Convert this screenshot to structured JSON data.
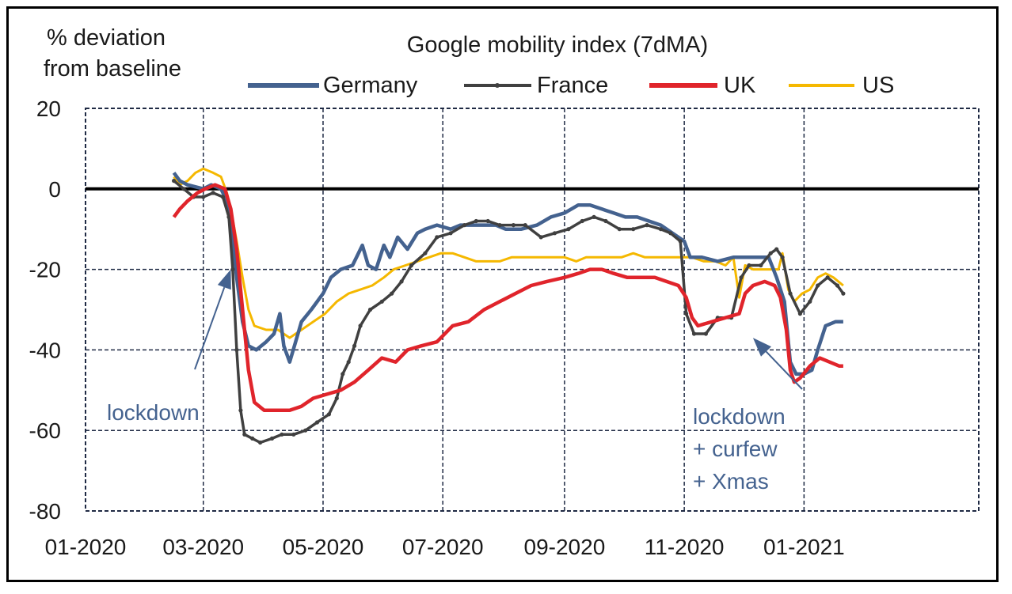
{
  "chart_data": {
    "type": "line",
    "title": "Google mobility index (7dMA)",
    "ylabel": "% deviation from baseline",
    "ylabel_lines": [
      "% deviation",
      "from baseline"
    ],
    "ylim": [
      -80,
      20
    ],
    "yticks": [
      20,
      0,
      -20,
      -40,
      -60,
      -80
    ],
    "xticks": [
      "01-2020",
      "03-2020",
      "05-2020",
      "07-2020",
      "09-2020",
      "11-2020",
      "01-2021"
    ],
    "xlim": [
      "2020-01-01",
      "2021-03-31"
    ],
    "grid": true,
    "legend_position": "top",
    "series": [
      {
        "name": "Germany",
        "color": "#44628f",
        "points": [
          [
            "2020-02-15",
            4
          ],
          [
            "2020-02-18",
            2
          ],
          [
            "2020-02-22",
            1
          ],
          [
            "2020-03-01",
            0
          ],
          [
            "2020-03-05",
            1
          ],
          [
            "2020-03-10",
            0
          ],
          [
            "2020-03-13",
            -3
          ],
          [
            "2020-03-15",
            -8
          ],
          [
            "2020-03-18",
            -22
          ],
          [
            "2020-03-21",
            -33
          ],
          [
            "2020-03-24",
            -39
          ],
          [
            "2020-03-28",
            -40
          ],
          [
            "2020-04-02",
            -38
          ],
          [
            "2020-04-06",
            -36
          ],
          [
            "2020-04-09",
            -31
          ],
          [
            "2020-04-11",
            -39
          ],
          [
            "2020-04-14",
            -43
          ],
          [
            "2020-04-17",
            -38
          ],
          [
            "2020-04-20",
            -33
          ],
          [
            "2020-04-25",
            -30
          ],
          [
            "2020-05-01",
            -26
          ],
          [
            "2020-05-05",
            -22
          ],
          [
            "2020-05-10",
            -20
          ],
          [
            "2020-05-16",
            -19
          ],
          [
            "2020-05-21",
            -14
          ],
          [
            "2020-05-24",
            -19
          ],
          [
            "2020-05-28",
            -20
          ],
          [
            "2020-06-01",
            -14
          ],
          [
            "2020-06-04",
            -17
          ],
          [
            "2020-06-08",
            -12
          ],
          [
            "2020-06-13",
            -15
          ],
          [
            "2020-06-18",
            -11
          ],
          [
            "2020-06-22",
            -10
          ],
          [
            "2020-06-28",
            -9
          ],
          [
            "2020-07-05",
            -10
          ],
          [
            "2020-07-10",
            -9
          ],
          [
            "2020-07-15",
            -9
          ],
          [
            "2020-07-20",
            -9
          ],
          [
            "2020-07-28",
            -9
          ],
          [
            "2020-08-02",
            -10
          ],
          [
            "2020-08-10",
            -10
          ],
          [
            "2020-08-18",
            -9
          ],
          [
            "2020-08-25",
            -7
          ],
          [
            "2020-09-01",
            -6
          ],
          [
            "2020-09-08",
            -4
          ],
          [
            "2020-09-14",
            -4
          ],
          [
            "2020-09-20",
            -5
          ],
          [
            "2020-09-26",
            -6
          ],
          [
            "2020-10-02",
            -7
          ],
          [
            "2020-10-08",
            -7
          ],
          [
            "2020-10-14",
            -8
          ],
          [
            "2020-10-20",
            -9
          ],
          [
            "2020-10-26",
            -11
          ],
          [
            "2020-11-01",
            -13
          ],
          [
            "2020-11-04",
            -17
          ],
          [
            "2020-11-10",
            -17
          ],
          [
            "2020-11-18",
            -18
          ],
          [
            "2020-11-26",
            -17
          ],
          [
            "2020-12-02",
            -17
          ],
          [
            "2020-12-09",
            -17
          ],
          [
            "2020-12-14",
            -17
          ],
          [
            "2020-12-18",
            -22
          ],
          [
            "2020-12-22",
            -28
          ],
          [
            "2020-12-25",
            -43
          ],
          [
            "2020-12-28",
            -46
          ],
          [
            "2021-01-01",
            -46
          ],
          [
            "2021-01-05",
            -45
          ],
          [
            "2021-01-08",
            -40
          ],
          [
            "2021-01-12",
            -34
          ],
          [
            "2021-01-17",
            -33
          ],
          [
            "2021-01-21",
            -33
          ]
        ]
      },
      {
        "name": "France",
        "color": "#404040",
        "marker": true,
        "points": [
          [
            "2020-02-15",
            2
          ],
          [
            "2020-02-20",
            0
          ],
          [
            "2020-02-25",
            -2
          ],
          [
            "2020-03-01",
            -2
          ],
          [
            "2020-03-06",
            -1
          ],
          [
            "2020-03-11",
            -2
          ],
          [
            "2020-03-14",
            -7
          ],
          [
            "2020-03-16",
            -20
          ],
          [
            "2020-03-18",
            -40
          ],
          [
            "2020-03-20",
            -55
          ],
          [
            "2020-03-22",
            -61
          ],
          [
            "2020-03-26",
            -62
          ],
          [
            "2020-03-30",
            -63
          ],
          [
            "2020-04-05",
            -62
          ],
          [
            "2020-04-10",
            -61
          ],
          [
            "2020-04-16",
            -61
          ],
          [
            "2020-04-22",
            -60
          ],
          [
            "2020-04-28",
            -58
          ],
          [
            "2020-05-04",
            -56
          ],
          [
            "2020-05-08",
            -52
          ],
          [
            "2020-05-11",
            -46
          ],
          [
            "2020-05-14",
            -43
          ],
          [
            "2020-05-17",
            -39
          ],
          [
            "2020-05-20",
            -34
          ],
          [
            "2020-05-25",
            -30
          ],
          [
            "2020-05-31",
            -28
          ],
          [
            "2020-06-05",
            -26
          ],
          [
            "2020-06-10",
            -23
          ],
          [
            "2020-06-15",
            -19
          ],
          [
            "2020-06-22",
            -16
          ],
          [
            "2020-06-28",
            -12
          ],
          [
            "2020-07-05",
            -11
          ],
          [
            "2020-07-12",
            -9
          ],
          [
            "2020-07-18",
            -8
          ],
          [
            "2020-07-24",
            -8
          ],
          [
            "2020-07-30",
            -9
          ],
          [
            "2020-08-06",
            -9
          ],
          [
            "2020-08-12",
            -9
          ],
          [
            "2020-08-20",
            -12
          ],
          [
            "2020-08-27",
            -11
          ],
          [
            "2020-09-03",
            -10
          ],
          [
            "2020-09-10",
            -8
          ],
          [
            "2020-09-16",
            -7
          ],
          [
            "2020-09-22",
            -8
          ],
          [
            "2020-09-29",
            -10
          ],
          [
            "2020-10-06",
            -10
          ],
          [
            "2020-10-13",
            -9
          ],
          [
            "2020-10-20",
            -10
          ],
          [
            "2020-10-25",
            -11
          ],
          [
            "2020-10-30",
            -13
          ],
          [
            "2020-11-02",
            -31
          ],
          [
            "2020-11-06",
            -36
          ],
          [
            "2020-11-12",
            -36
          ],
          [
            "2020-11-18",
            -32
          ],
          [
            "2020-11-25",
            -32
          ],
          [
            "2020-11-30",
            -22
          ],
          [
            "2020-12-04",
            -19
          ],
          [
            "2020-12-10",
            -19
          ],
          [
            "2020-12-15",
            -16
          ],
          [
            "2020-12-18",
            -15
          ],
          [
            "2020-12-21",
            -17
          ],
          [
            "2020-12-25",
            -26
          ],
          [
            "2020-12-30",
            -31
          ],
          [
            "2021-01-04",
            -28
          ],
          [
            "2021-01-08",
            -24
          ],
          [
            "2021-01-13",
            -22
          ],
          [
            "2021-01-18",
            -24
          ],
          [
            "2021-01-21",
            -26
          ]
        ]
      },
      {
        "name": "UK",
        "color": "#e0242b",
        "points": [
          [
            "2020-02-15",
            -7
          ],
          [
            "2020-02-18",
            -5
          ],
          [
            "2020-02-22",
            -3
          ],
          [
            "2020-02-27",
            -1
          ],
          [
            "2020-03-02",
            0
          ],
          [
            "2020-03-07",
            1
          ],
          [
            "2020-03-12",
            0
          ],
          [
            "2020-03-15",
            -5
          ],
          [
            "2020-03-18",
            -15
          ],
          [
            "2020-03-21",
            -30
          ],
          [
            "2020-03-24",
            -45
          ],
          [
            "2020-03-27",
            -53
          ],
          [
            "2020-04-01",
            -55
          ],
          [
            "2020-04-08",
            -55
          ],
          [
            "2020-04-14",
            -55
          ],
          [
            "2020-04-20",
            -54
          ],
          [
            "2020-04-26",
            -52
          ],
          [
            "2020-05-03",
            -51
          ],
          [
            "2020-05-10",
            -50
          ],
          [
            "2020-05-17",
            -48
          ],
          [
            "2020-05-24",
            -45
          ],
          [
            "2020-05-31",
            -42
          ],
          [
            "2020-06-07",
            -43
          ],
          [
            "2020-06-13",
            -40
          ],
          [
            "2020-06-20",
            -39
          ],
          [
            "2020-06-28",
            -38
          ],
          [
            "2020-07-06",
            -34
          ],
          [
            "2020-07-14",
            -33
          ],
          [
            "2020-07-22",
            -30
          ],
          [
            "2020-07-30",
            -28
          ],
          [
            "2020-08-07",
            -26
          ],
          [
            "2020-08-15",
            -24
          ],
          [
            "2020-08-23",
            -23
          ],
          [
            "2020-09-01",
            -22
          ],
          [
            "2020-09-08",
            -21
          ],
          [
            "2020-09-14",
            -20
          ],
          [
            "2020-09-20",
            -20
          ],
          [
            "2020-09-26",
            -21
          ],
          [
            "2020-10-03",
            -22
          ],
          [
            "2020-10-10",
            -22
          ],
          [
            "2020-10-17",
            -22
          ],
          [
            "2020-10-23",
            -23
          ],
          [
            "2020-10-29",
            -24
          ],
          [
            "2020-11-02",
            -27
          ],
          [
            "2020-11-05",
            -32
          ],
          [
            "2020-11-08",
            -34
          ],
          [
            "2020-11-15",
            -33
          ],
          [
            "2020-11-22",
            -32
          ],
          [
            "2020-11-29",
            -31
          ],
          [
            "2020-12-02",
            -26
          ],
          [
            "2020-12-06",
            -24
          ],
          [
            "2020-12-12",
            -23
          ],
          [
            "2020-12-17",
            -24
          ],
          [
            "2020-12-20",
            -27
          ],
          [
            "2020-12-23",
            -35
          ],
          [
            "2020-12-25",
            -45
          ],
          [
            "2020-12-27",
            -48
          ],
          [
            "2020-12-30",
            -47
          ],
          [
            "2021-01-04",
            -44
          ],
          [
            "2021-01-09",
            -42
          ],
          [
            "2021-01-14",
            -43
          ],
          [
            "2021-01-19",
            -44
          ],
          [
            "2021-01-21",
            -44
          ]
        ]
      },
      {
        "name": "US",
        "color": "#f5b800",
        "points": [
          [
            "2020-02-15",
            3
          ],
          [
            "2020-02-18",
            1
          ],
          [
            "2020-02-22",
            2
          ],
          [
            "2020-02-26",
            4
          ],
          [
            "2020-03-01",
            5
          ],
          [
            "2020-03-06",
            4
          ],
          [
            "2020-03-10",
            3
          ],
          [
            "2020-03-13",
            -1
          ],
          [
            "2020-03-15",
            -5
          ],
          [
            "2020-03-18",
            -13
          ],
          [
            "2020-03-21",
            -22
          ],
          [
            "2020-03-24",
            -30
          ],
          [
            "2020-03-27",
            -34
          ],
          [
            "2020-04-02",
            -35
          ],
          [
            "2020-04-08",
            -35
          ],
          [
            "2020-04-14",
            -37
          ],
          [
            "2020-04-20",
            -35
          ],
          [
            "2020-04-26",
            -33
          ],
          [
            "2020-05-02",
            -31
          ],
          [
            "2020-05-08",
            -28
          ],
          [
            "2020-05-14",
            -26
          ],
          [
            "2020-05-20",
            -25
          ],
          [
            "2020-05-26",
            -24
          ],
          [
            "2020-06-01",
            -22
          ],
          [
            "2020-06-06",
            -20
          ],
          [
            "2020-06-12",
            -19
          ],
          [
            "2020-06-18",
            -18
          ],
          [
            "2020-06-24",
            -17
          ],
          [
            "2020-06-30",
            -16
          ],
          [
            "2020-07-06",
            -16
          ],
          [
            "2020-07-12",
            -17
          ],
          [
            "2020-07-18",
            -18
          ],
          [
            "2020-07-24",
            -18
          ],
          [
            "2020-07-30",
            -18
          ],
          [
            "2020-08-05",
            -17
          ],
          [
            "2020-08-12",
            -17
          ],
          [
            "2020-08-18",
            -17
          ],
          [
            "2020-08-25",
            -17
          ],
          [
            "2020-09-01",
            -17
          ],
          [
            "2020-09-07",
            -18
          ],
          [
            "2020-09-12",
            -17
          ],
          [
            "2020-09-18",
            -17
          ],
          [
            "2020-09-24",
            -17
          ],
          [
            "2020-09-30",
            -17
          ],
          [
            "2020-10-06",
            -16
          ],
          [
            "2020-10-12",
            -17
          ],
          [
            "2020-10-18",
            -17
          ],
          [
            "2020-10-24",
            -17
          ],
          [
            "2020-10-30",
            -17
          ],
          [
            "2020-11-05",
            -17
          ],
          [
            "2020-11-11",
            -18
          ],
          [
            "2020-11-17",
            -18
          ],
          [
            "2020-11-22",
            -19
          ],
          [
            "2020-11-26",
            -17
          ],
          [
            "2020-11-29",
            -27
          ],
          [
            "2020-12-02",
            -19
          ],
          [
            "2020-12-06",
            -20
          ],
          [
            "2020-12-11",
            -20
          ],
          [
            "2020-12-16",
            -20
          ],
          [
            "2020-12-19",
            -20
          ],
          [
            "2020-12-21",
            -16
          ],
          [
            "2020-12-24",
            -25
          ],
          [
            "2020-12-27",
            -28
          ],
          [
            "2020-12-31",
            -26
          ],
          [
            "2021-01-04",
            -25
          ],
          [
            "2021-01-08",
            -22
          ],
          [
            "2021-01-12",
            -21
          ],
          [
            "2021-01-16",
            -22
          ],
          [
            "2021-01-21",
            -24
          ]
        ]
      }
    ],
    "annotations": [
      {
        "lines": [
          "lockdown"
        ],
        "color": "#44628f",
        "arrow_to": [
          "2020-03-15",
          -20
        ]
      },
      {
        "lines": [
          "lockdown",
          "+ curfew",
          "+ Xmas"
        ],
        "color": "#44628f",
        "arrow_to": [
          "2020-12-06",
          -37
        ]
      }
    ]
  }
}
